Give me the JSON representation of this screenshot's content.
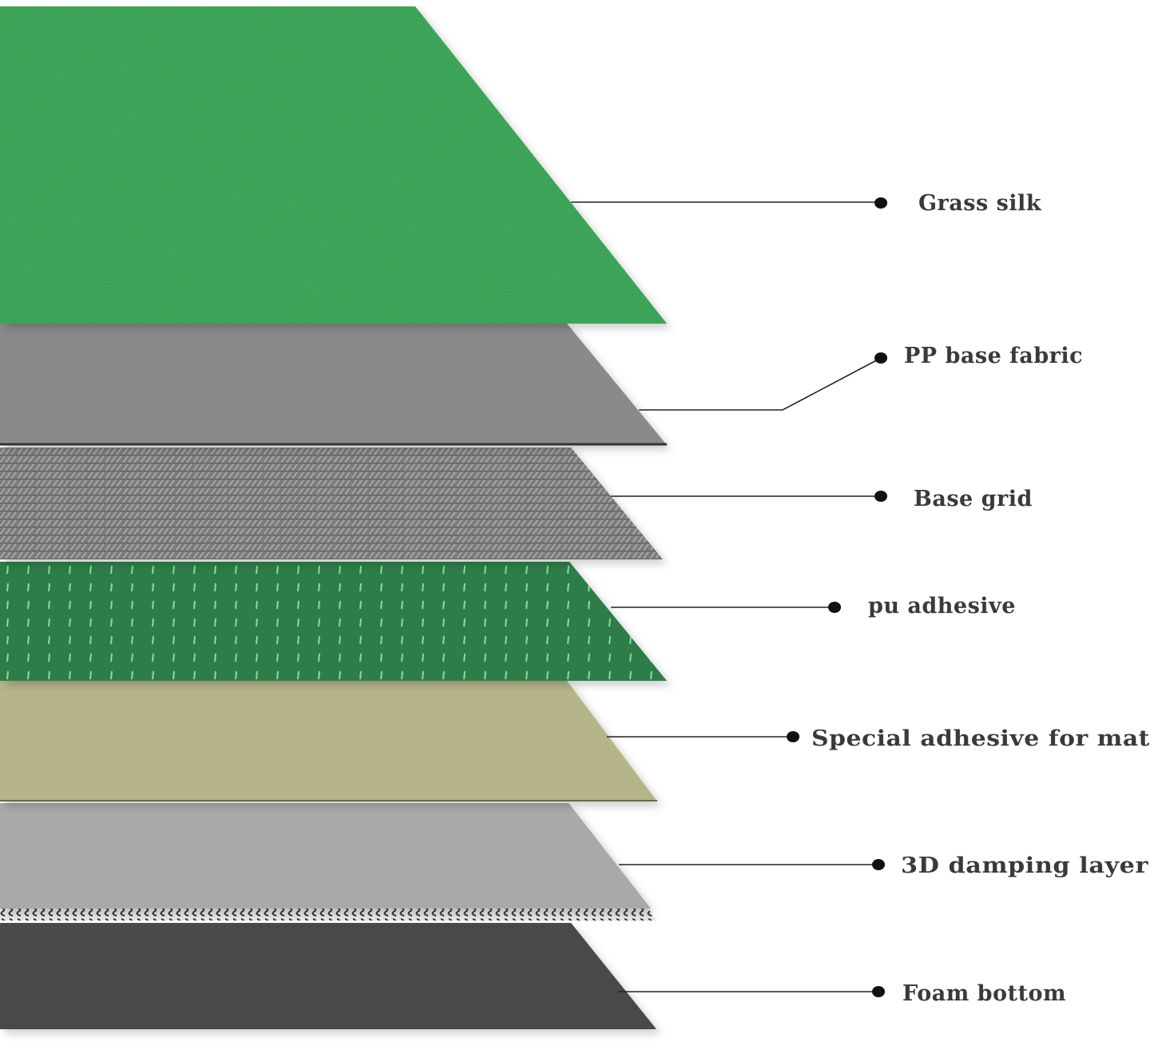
{
  "layers": [
    {
      "label": "Grass silk",
      "color": "#2f9a48"
    },
    {
      "label": "PP base fabric",
      "color": "#8a8a8a"
    },
    {
      "label": "Base grid",
      "color": "#7a7a7a"
    },
    {
      "label": "pu adhesive",
      "color": "#2e7d4a"
    },
    {
      "label": "Special adhesive for mat",
      "color": "#b6b589"
    },
    {
      "label": "3D damping layer",
      "color": "#a9a9a9"
    },
    {
      "label": "Foam bottom",
      "color": "#4a4a4a"
    }
  ]
}
